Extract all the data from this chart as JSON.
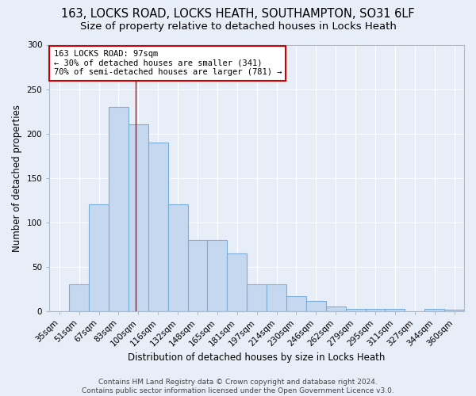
{
  "title1": "163, LOCKS ROAD, LOCKS HEATH, SOUTHAMPTON, SO31 6LF",
  "title2": "Size of property relative to detached houses in Locks Heath",
  "xlabel": "Distribution of detached houses by size in Locks Heath",
  "ylabel": "Number of detached properties",
  "bar_labels": [
    "35sqm",
    "51sqm",
    "67sqm",
    "83sqm",
    "100sqm",
    "116sqm",
    "132sqm",
    "148sqm",
    "165sqm",
    "181sqm",
    "197sqm",
    "214sqm",
    "230sqm",
    "246sqm",
    "262sqm",
    "279sqm",
    "295sqm",
    "311sqm",
    "327sqm",
    "344sqm",
    "360sqm"
  ],
  "bar_values": [
    0,
    30,
    120,
    230,
    210,
    190,
    120,
    80,
    80,
    65,
    30,
    30,
    17,
    12,
    5,
    3,
    3,
    3,
    0,
    3,
    2
  ],
  "bar_color": "#c5d8f0",
  "bar_edgecolor": "#7aadd4",
  "redline_x": 3.85,
  "annotation_line1": "163 LOCKS ROAD: 97sqm",
  "annotation_line2": "← 30% of detached houses are smaller (341)",
  "annotation_line3": "70% of semi-detached houses are larger (781) →",
  "annotation_box_color": "#ffffff",
  "annotation_box_edgecolor": "#cc0000",
  "ylim": [
    0,
    300
  ],
  "yticks": [
    0,
    50,
    100,
    150,
    200,
    250,
    300
  ],
  "footer": "Contains HM Land Registry data © Crown copyright and database right 2024.\nContains public sector information licensed under the Open Government Licence v3.0.",
  "bg_color": "#e8eef8",
  "grid_color": "#ffffff",
  "title_fontsize": 10.5,
  "subtitle_fontsize": 9.5,
  "axis_label_fontsize": 8.5,
  "tick_fontsize": 7.5,
  "footer_fontsize": 6.5
}
